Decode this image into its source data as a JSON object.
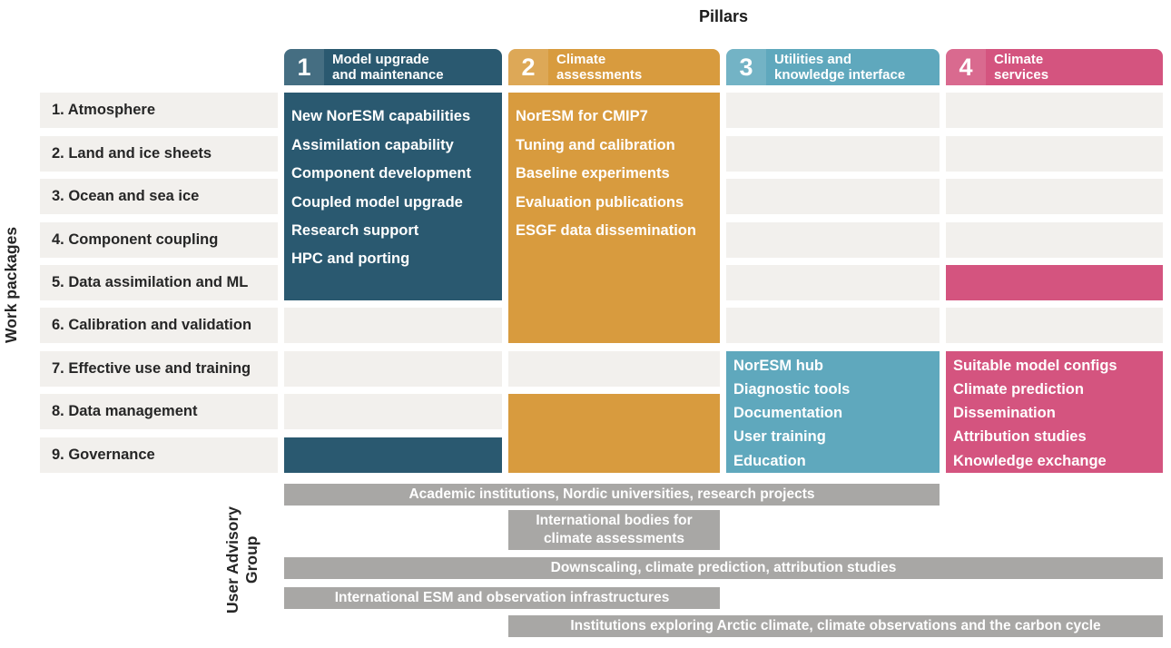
{
  "title": "Pillars",
  "axes": {
    "work_packages": "Work packages",
    "user_advisory": "User Advisory\nGroup"
  },
  "colors": {
    "pillar1": "#2a5970",
    "pillar2": "#d89b3e",
    "pillar3": "#5fa8bd",
    "pillar4": "#d4547f",
    "cell_background": "#f2f0ed",
    "advisory_bar": "#a8a7a5"
  },
  "pillars": [
    {
      "number": "1",
      "title": "Model upgrade\nand maintenance",
      "items": [
        "New NorESM capabilities",
        "Assimilation capability",
        "Component development",
        "Coupled model upgrade",
        "Research support",
        "HPC and porting"
      ]
    },
    {
      "number": "2",
      "title": "Climate\nassessments",
      "items": [
        "NorESM for CMIP7",
        "Tuning and calibration",
        "Baseline experiments",
        "Evaluation publications",
        "ESGF data dissemination"
      ]
    },
    {
      "number": "3",
      "title": "Utilities and\nknowledge interface",
      "items": [
        "NorESM hub",
        "Diagnostic tools",
        "Documentation",
        "User training",
        "Education"
      ]
    },
    {
      "number": "4",
      "title": "Climate\nservices",
      "items": [
        "Suitable model configs",
        "Climate prediction",
        "Dissemination",
        "Attribution studies",
        "Knowledge exchange"
      ]
    }
  ],
  "work_packages": [
    "1. Atmosphere",
    "2. Land and ice sheets",
    "3. Ocean and sea ice",
    "4. Component coupling",
    "5. Data assimilation and ML",
    "6. Calibration and validation",
    "7. Effective use and training",
    "8. Data management",
    "9. Governance"
  ],
  "user_advisory_bars": [
    "Academic institutions, Nordic universities, research projects",
    "International bodies for climate assessments",
    "Downscaling, climate prediction, attribution studies",
    "International ESM and observation infrastructures",
    "Institutions exploring Arctic climate, climate observations and the carbon cycle"
  ]
}
